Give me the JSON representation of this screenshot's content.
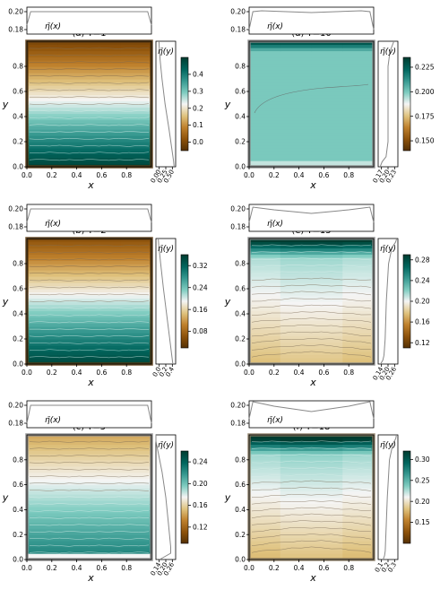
{
  "chart_data": [
    {
      "type": "heatmap",
      "panel_label": "(a) T=1",
      "xlabel": "x",
      "ylabel": "y",
      "xlim": [
        0,
        1
      ],
      "ylim": [
        0,
        1
      ],
      "x_ticks": [
        "0.0",
        "0.2",
        "0.4",
        "0.6",
        "0.8"
      ],
      "y_ticks": [
        "0.0",
        "0.2",
        "0.4",
        "0.6",
        "0.8"
      ],
      "top_profile": {
        "label": "η̄(x)",
        "ylim": [
          0.175,
          0.205
        ],
        "y_ticks": [
          "0.18",
          "0.20"
        ],
        "x": [
          0,
          0.03,
          0.08,
          0.5,
          0.92,
          0.97,
          1
        ],
        "values": [
          0.185,
          0.2,
          0.2,
          0.2,
          0.2,
          0.2,
          0.185
        ]
      },
      "side_profile": {
        "label": "η̄(y)",
        "xlim": [
          -0.1,
          0.55
        ],
        "x_ticks": [
          "0.00",
          "0.25",
          "0.50"
        ],
        "y": [
          0,
          0.05,
          0.15,
          0.3,
          0.5,
          0.7,
          0.85,
          0.95,
          1
        ],
        "values": [
          0.5,
          0.48,
          0.42,
          0.33,
          0.2,
          0.1,
          0.04,
          0.01,
          0.0
        ]
      },
      "colorbar": {
        "range": [
          -0.05,
          0.5
        ],
        "ticks": [
          "0.0",
          "0.1",
          "0.2",
          "0.3",
          "0.4"
        ]
      }
    },
    {
      "type": "heatmap",
      "panel_label": "(d) T=10",
      "xlabel": "x",
      "ylabel": "y",
      "xlim": [
        0,
        1
      ],
      "ylim": [
        0,
        1
      ],
      "x_ticks": [
        "0.0",
        "0.2",
        "0.4",
        "0.6",
        "0.8"
      ],
      "y_ticks": [
        "0.0",
        "0.2",
        "0.4",
        "0.6",
        "0.8"
      ],
      "top_profile": {
        "label": "η̄(x)",
        "ylim": [
          0.175,
          0.205
        ],
        "y_ticks": [
          "0.18",
          "0.20"
        ],
        "x": [
          0,
          0.03,
          0.1,
          0.5,
          0.9,
          0.97,
          1
        ],
        "values": [
          0.18,
          0.2,
          0.201,
          0.199,
          0.201,
          0.2,
          0.18
        ]
      },
      "side_profile": {
        "label": "η̄(y)",
        "xlim": [
          0.15,
          0.25
        ],
        "x_ticks": [
          "0.17",
          "0.20",
          "0.23"
        ],
        "y": [
          0,
          0.04,
          0.08,
          0.2,
          0.5,
          0.8,
          0.92,
          0.96,
          1
        ],
        "values": [
          0.16,
          0.17,
          0.19,
          0.2,
          0.2,
          0.2,
          0.21,
          0.22,
          0.23
        ]
      },
      "colorbar": {
        "range": [
          0.14,
          0.235
        ],
        "ticks": [
          "0.150",
          "0.175",
          "0.200",
          "0.225"
        ]
      }
    },
    {
      "type": "heatmap",
      "panel_label": "(b) T=2",
      "xlabel": "x",
      "ylabel": "y",
      "xlim": [
        0,
        1
      ],
      "ylim": [
        0,
        1
      ],
      "x_ticks": [
        "0.0",
        "0.2",
        "0.4",
        "0.6",
        "0.8"
      ],
      "y_ticks": [
        "0.0",
        "0.2",
        "0.4",
        "0.6",
        "0.8"
      ],
      "top_profile": {
        "label": "η̄(x)",
        "ylim": [
          0.175,
          0.205
        ],
        "y_ticks": [
          "0.18",
          "0.20"
        ],
        "x": [
          0,
          0.03,
          0.08,
          0.5,
          0.92,
          0.97,
          1
        ],
        "values": [
          0.185,
          0.2,
          0.2,
          0.2,
          0.2,
          0.2,
          0.185
        ]
      },
      "side_profile": {
        "label": "η̄(y)",
        "xlim": [
          -0.05,
          0.45
        ],
        "x_ticks": [
          "0.0",
          "0.2",
          "0.4"
        ],
        "y": [
          0,
          0.05,
          0.2,
          0.4,
          0.6,
          0.8,
          0.95,
          1
        ],
        "values": [
          0.38,
          0.36,
          0.3,
          0.22,
          0.14,
          0.07,
          0.02,
          0.01
        ]
      },
      "colorbar": {
        "range": [
          0.02,
          0.36
        ],
        "ticks": [
          "0.08",
          "0.16",
          "0.24",
          "0.32"
        ]
      }
    },
    {
      "type": "heatmap",
      "panel_label": "(e) T=15",
      "xlabel": "x",
      "ylabel": "y",
      "xlim": [
        0,
        1
      ],
      "ylim": [
        0,
        1
      ],
      "x_ticks": [
        "0.0",
        "0.2",
        "0.4",
        "0.6",
        "0.8"
      ],
      "y_ticks": [
        "0.0",
        "0.2",
        "0.4",
        "0.6",
        "0.8"
      ],
      "top_profile": {
        "label": "η̄(x)",
        "ylim": [
          0.175,
          0.205
        ],
        "y_ticks": [
          "0.18",
          "0.20"
        ],
        "x": [
          0,
          0.03,
          0.2,
          0.5,
          0.8,
          0.97,
          1
        ],
        "values": [
          0.185,
          0.202,
          0.199,
          0.195,
          0.199,
          0.202,
          0.185
        ]
      },
      "side_profile": {
        "label": "η̄(y)",
        "xlim": [
          0.12,
          0.29
        ],
        "x_ticks": [
          "0.14",
          "0.20",
          "0.26"
        ],
        "y": [
          0,
          0.03,
          0.07,
          0.2,
          0.5,
          0.8,
          0.93,
          0.97,
          1
        ],
        "values": [
          0.14,
          0.16,
          0.17,
          0.18,
          0.19,
          0.21,
          0.24,
          0.27,
          0.28
        ]
      },
      "colorbar": {
        "range": [
          0.11,
          0.29
        ],
        "ticks": [
          "0.12",
          "0.16",
          "0.20",
          "0.24",
          "0.28"
        ]
      }
    },
    {
      "type": "heatmap",
      "panel_label": "(c) T=5",
      "xlabel": "x",
      "ylabel": "y",
      "xlim": [
        0,
        1
      ],
      "ylim": [
        0,
        1
      ],
      "x_ticks": [
        "0.0",
        "0.2",
        "0.4",
        "0.6",
        "0.8"
      ],
      "y_ticks": [
        "0.0",
        "0.2",
        "0.4",
        "0.6",
        "0.8"
      ],
      "top_profile": {
        "label": "η̄(x)",
        "ylim": [
          0.175,
          0.205
        ],
        "y_ticks": [
          "0.18",
          "0.20"
        ],
        "x": [
          0,
          0.03,
          0.08,
          0.5,
          0.92,
          0.97,
          1
        ],
        "values": [
          0.18,
          0.2,
          0.2,
          0.2,
          0.2,
          0.2,
          0.18
        ]
      },
      "side_profile": {
        "label": "η̄(y)",
        "xlim": [
          0.12,
          0.28
        ],
        "x_ticks": [
          "0.14",
          "0.20",
          "0.26"
        ],
        "y": [
          0,
          0.05,
          0.1,
          0.3,
          0.5,
          0.7,
          0.9,
          0.95,
          1
        ],
        "values": [
          0.15,
          0.24,
          0.24,
          0.22,
          0.2,
          0.17,
          0.13,
          0.12,
          0.12
        ]
      },
      "colorbar": {
        "range": [
          0.09,
          0.26
        ],
        "ticks": [
          "0.12",
          "0.16",
          "0.20",
          "0.24"
        ]
      }
    },
    {
      "type": "heatmap",
      "panel_label": "(f) T=18",
      "xlabel": "x",
      "ylabel": "y",
      "xlim": [
        0,
        1
      ],
      "ylim": [
        0,
        1
      ],
      "x_ticks": [
        "0.0",
        "0.2",
        "0.4",
        "0.6",
        "0.8"
      ],
      "y_ticks": [
        "0.0",
        "0.2",
        "0.4",
        "0.6",
        "0.8"
      ],
      "top_profile": {
        "label": "η̄(x)",
        "ylim": [
          0.175,
          0.205
        ],
        "y_ticks": [
          "0.18",
          "0.20"
        ],
        "x": [
          0,
          0.03,
          0.2,
          0.5,
          0.8,
          0.97,
          1
        ],
        "values": [
          0.185,
          0.204,
          0.199,
          0.193,
          0.199,
          0.204,
          0.185
        ]
      },
      "side_profile": {
        "label": "η̄(y)",
        "xlim": [
          0.05,
          0.33
        ],
        "x_ticks": [
          "0.1",
          "0.2",
          "0.3"
        ],
        "y": [
          0,
          0.03,
          0.07,
          0.2,
          0.5,
          0.8,
          0.93,
          0.97,
          1
        ],
        "values": [
          0.12,
          0.14,
          0.15,
          0.16,
          0.18,
          0.21,
          0.26,
          0.3,
          0.31
        ]
      },
      "colorbar": {
        "range": [
          0.1,
          0.32
        ],
        "ticks": [
          "0.15",
          "0.20",
          "0.25",
          "0.30"
        ]
      }
    }
  ]
}
